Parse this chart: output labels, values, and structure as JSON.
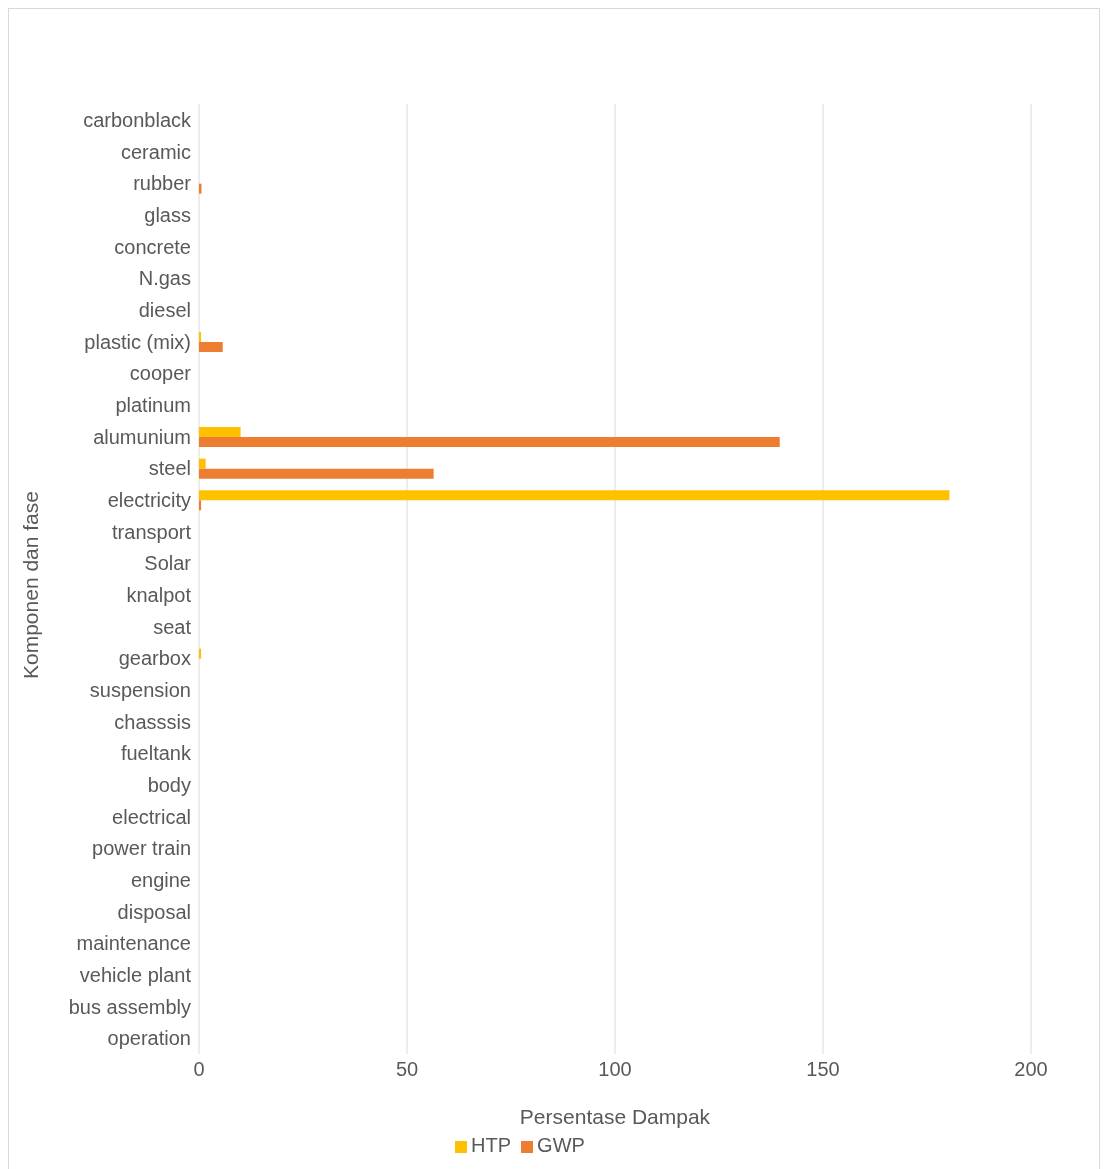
{
  "chart_data": {
    "type": "bar",
    "orientation": "horizontal",
    "xlabel": "Persentase Dampak",
    "ylabel": "Komponen dan fase",
    "categories": [
      "carbonblack",
      "ceramic",
      "rubber",
      "glass",
      "concrete",
      "N.gas",
      "diesel",
      "plastic (mix)",
      "cooper",
      "platinum",
      "alumunium",
      "steel",
      "electricity",
      "transport",
      "Solar",
      "knalpot",
      "seat",
      "gearbox",
      "suspension",
      "chasssis",
      "fueltank",
      "body",
      "electrical",
      "power train",
      "engine",
      "disposal",
      "maintenance",
      "vehicle plant",
      "bus assembly",
      "operation"
    ],
    "series": [
      {
        "name": "HTP",
        "color": "#ffc000",
        "values": [
          0,
          0,
          0,
          0,
          0,
          0,
          0,
          0.5,
          0,
          0,
          10,
          1.6,
          180.4,
          0,
          0,
          0,
          0,
          0.5,
          0,
          0,
          0,
          0,
          0,
          0,
          0,
          0,
          0,
          0,
          0,
          0
        ]
      },
      {
        "name": "GWP",
        "color": "#ed7d31",
        "values": [
          0,
          0,
          0.6,
          0,
          0,
          0,
          0,
          5.7,
          0,
          0,
          139.6,
          56.4,
          0.5,
          0,
          0,
          0,
          0,
          0,
          0,
          0,
          0,
          0,
          0,
          0,
          0,
          0,
          0,
          0,
          0,
          0
        ]
      }
    ],
    "xlim": [
      0,
      200
    ],
    "xticks": [
      0,
      50,
      100,
      150,
      200
    ],
    "grid": "x",
    "legend": "bottom"
  }
}
